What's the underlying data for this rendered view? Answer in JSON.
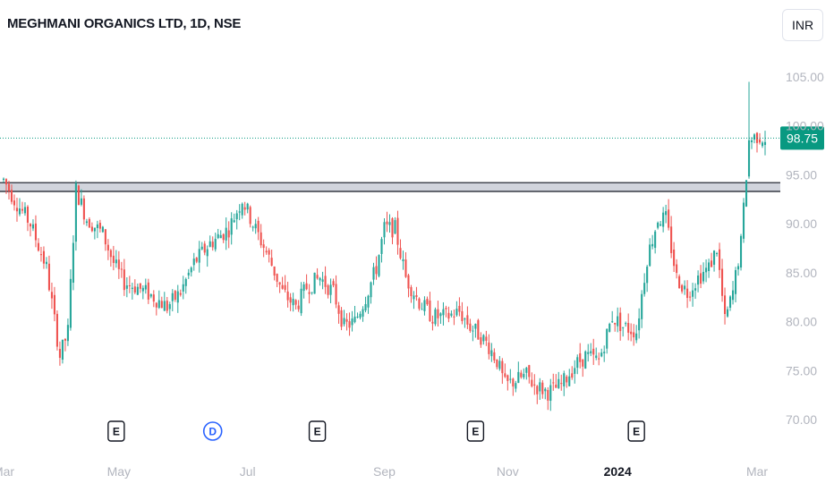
{
  "header": {
    "title": "MEGHMANI ORGANICS LTD, 1D, NSE",
    "currency": "INR"
  },
  "colors": {
    "up": "#26a69a",
    "down": "#ef5350",
    "accent": "#089981",
    "axis_text": "#b2b5be",
    "dividend": "#2962ff",
    "earnings": "#131722",
    "zone_fill": "#d1d4dc"
  },
  "chart_data": {
    "type": "candlestick",
    "title": "MEGHMANI ORGANICS LTD, 1D, NSE",
    "xlabel": "",
    "ylabel": "",
    "ylim": [
      70,
      107
    ],
    "y_ticks": [
      "105.00",
      "100.00",
      "95.00",
      "90.00",
      "85.00",
      "80.00",
      "75.00",
      "70.00"
    ],
    "y_tick_values": [
      105,
      100,
      95,
      90,
      85,
      80,
      75,
      70
    ],
    "x_ticks": [
      "Mar",
      "May",
      "Jul",
      "Sep",
      "Nov",
      "2024",
      "Mar"
    ],
    "x_tick_positions": [
      0,
      43,
      91,
      142,
      188,
      229,
      281
    ],
    "x_range": [
      0,
      284
    ],
    "bold_tick": "2024",
    "last_price": 98.75,
    "last_price_label": "98.75",
    "support_zone": [
      93.3,
      94.2
    ],
    "grid": false,
    "anchors": [
      [
        0,
        94.5
      ],
      [
        4,
        92.5
      ],
      [
        10,
        90
      ],
      [
        16,
        85.5
      ],
      [
        21,
        76.5
      ],
      [
        24,
        79
      ],
      [
        27,
        93.5
      ],
      [
        31,
        90.5
      ],
      [
        37,
        89
      ],
      [
        41,
        86
      ],
      [
        45,
        84
      ],
      [
        50,
        83.5
      ],
      [
        56,
        82.5
      ],
      [
        61,
        81.5
      ],
      [
        66,
        83
      ],
      [
        71,
        86
      ],
      [
        77,
        88
      ],
      [
        84,
        89.5
      ],
      [
        89,
        92.5
      ],
      [
        93,
        90
      ],
      [
        99,
        86.5
      ],
      [
        104,
        83
      ],
      [
        109,
        81.5
      ],
      [
        113,
        83.5
      ],
      [
        118,
        84.5
      ],
      [
        123,
        83
      ],
      [
        127,
        79.5
      ],
      [
        131,
        80
      ],
      [
        135,
        82.5
      ],
      [
        139,
        85.5
      ],
      [
        142,
        89.5
      ],
      [
        146,
        89.5
      ],
      [
        150,
        84.5
      ],
      [
        155,
        82
      ],
      [
        160,
        80.5
      ],
      [
        165,
        80.5
      ],
      [
        170,
        81
      ],
      [
        174,
        79.5
      ],
      [
        178,
        78.5
      ],
      [
        181,
        77.5
      ],
      [
        184,
        76
      ],
      [
        187,
        73.5
      ],
      [
        191,
        74
      ],
      [
        195,
        74.5
      ],
      [
        198,
        73.5
      ],
      [
        203,
        72.8
      ],
      [
        208,
        73.5
      ],
      [
        213,
        75.5
      ],
      [
        217,
        76.5
      ],
      [
        222,
        76
      ],
      [
        227,
        80.5
      ],
      [
        231,
        79.5
      ],
      [
        236,
        79
      ],
      [
        240,
        86.5
      ],
      [
        244,
        90.5
      ],
      [
        247,
        90.5
      ],
      [
        251,
        84.5
      ],
      [
        255,
        83
      ],
      [
        259,
        84.5
      ],
      [
        263,
        85.5
      ],
      [
        266,
        87.5
      ],
      [
        269,
        80
      ],
      [
        272,
        83
      ],
      [
        275,
        88
      ],
      [
        278,
        98.5
      ],
      [
        281,
        99
      ],
      [
        284,
        98.75
      ]
    ],
    "wick_spikes": [
      [
        278,
        104.5
      ]
    ],
    "markers": [
      {
        "label": "E",
        "x": 42,
        "kind": "earnings"
      },
      {
        "label": "D",
        "x": 78,
        "kind": "dividend"
      },
      {
        "label": "E",
        "x": 117,
        "kind": "earnings"
      },
      {
        "label": "E",
        "x": 176,
        "kind": "earnings"
      },
      {
        "label": "E",
        "x": 236,
        "kind": "earnings"
      }
    ]
  }
}
